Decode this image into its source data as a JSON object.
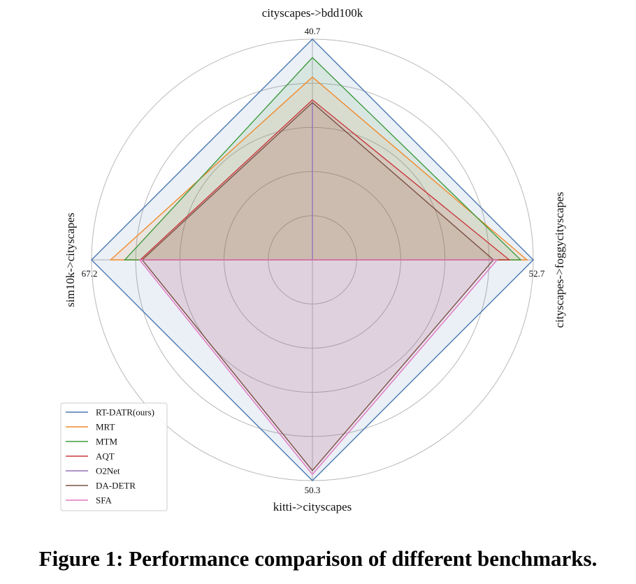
{
  "chart_data": {
    "type": "radar",
    "axes": [
      {
        "name": "cityscapes->bdd100k",
        "max": 40.7,
        "max_label": "40.7"
      },
      {
        "name": "cityscapes->foggycityscapes",
        "max": 52.7,
        "max_label": "52.7"
      },
      {
        "name": "kitti->cityscapes",
        "max": 50.3,
        "max_label": "50.3"
      },
      {
        "name": "sim10k->cityscapes",
        "max": 67.2,
        "max_label": "67.2"
      }
    ],
    "grid": true,
    "legend_position": "lower-left",
    "series": [
      {
        "name": "RT-DATR(ours)",
        "color": "#4a78b0",
        "fill": true,
        "values": [
          40.7,
          52.7,
          50.3,
          67.2
        ]
      },
      {
        "name": "MRT",
        "color": "#f08a2c",
        "fill": true,
        "values": [
          33.7,
          51.2,
          0,
          61.4
        ]
      },
      {
        "name": "MTM",
        "color": "#3f9b3f",
        "fill": true,
        "values": [
          37.3,
          49.7,
          0,
          57.1
        ]
      },
      {
        "name": "AQT",
        "color": "#c8383c",
        "fill": true,
        "values": [
          29.5,
          47.0,
          0,
          52.4
        ]
      },
      {
        "name": "O2Net",
        "color": "#9370b8",
        "fill": true,
        "values": [
          29.1,
          0,
          0,
          0
        ]
      },
      {
        "name": "DA-DETR",
        "color": "#7b5044",
        "fill": true,
        "values": [
          29.0,
          43.2,
          48.0,
          51.8
        ]
      },
      {
        "name": "SFA",
        "color": "#e079c0",
        "fill": true,
        "values": [
          0,
          44.1,
          48.9,
          52.6
        ]
      }
    ]
  },
  "caption": "Figure 1: Performance comparison of different benchmarks."
}
